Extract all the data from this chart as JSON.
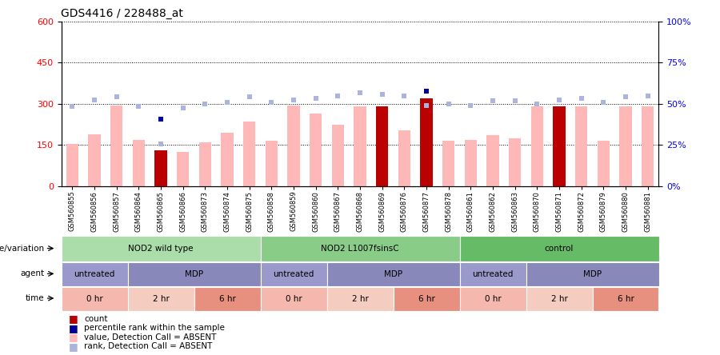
{
  "title": "GDS4416 / 228488_at",
  "samples": [
    "GSM560855",
    "GSM560856",
    "GSM560857",
    "GSM560864",
    "GSM560865",
    "GSM560866",
    "GSM560873",
    "GSM560874",
    "GSM560875",
    "GSM560858",
    "GSM560859",
    "GSM560860",
    "GSM560867",
    "GSM560868",
    "GSM560869",
    "GSM560876",
    "GSM560877",
    "GSM560878",
    "GSM560861",
    "GSM560862",
    "GSM560863",
    "GSM560870",
    "GSM560871",
    "GSM560872",
    "GSM560879",
    "GSM560880",
    "GSM560881"
  ],
  "values_absent": [
    155,
    190,
    295,
    170,
    110,
    125,
    160,
    195,
    235,
    165,
    295,
    265,
    225,
    290,
    285,
    205,
    170,
    165,
    170,
    185,
    175,
    290,
    275,
    290,
    165,
    290,
    290
  ],
  "rank_absent": [
    290,
    315,
    325,
    290,
    155,
    285,
    300,
    305,
    325,
    305,
    315,
    320,
    330,
    340,
    335,
    330,
    295,
    300,
    295,
    310,
    310,
    300,
    315,
    320,
    305,
    325,
    330
  ],
  "count_values": [
    0,
    0,
    0,
    0,
    130,
    0,
    0,
    0,
    0,
    0,
    0,
    0,
    0,
    0,
    290,
    0,
    320,
    0,
    0,
    0,
    0,
    0,
    290,
    0,
    0,
    0,
    0
  ],
  "rank_present": [
    null,
    null,
    null,
    null,
    245,
    null,
    null,
    null,
    null,
    null,
    null,
    null,
    null,
    null,
    null,
    null,
    345,
    null,
    null,
    null,
    null,
    null,
    null,
    null,
    null,
    null,
    null
  ],
  "genotype_groups": [
    {
      "label": "NOD2 wild type",
      "start": 0,
      "end": 8,
      "color": "#aaddaa"
    },
    {
      "label": "NOD2 L1007fsinsC",
      "start": 9,
      "end": 17,
      "color": "#88cc88"
    },
    {
      "label": "control",
      "start": 18,
      "end": 26,
      "color": "#66bb66"
    }
  ],
  "agent_groups": [
    {
      "label": "untreated",
      "start": 0,
      "end": 2,
      "color": "#9999cc"
    },
    {
      "label": "MDP",
      "start": 3,
      "end": 8,
      "color": "#8888bb"
    },
    {
      "label": "untreated",
      "start": 9,
      "end": 11,
      "color": "#9999cc"
    },
    {
      "label": "MDP",
      "start": 12,
      "end": 17,
      "color": "#8888bb"
    },
    {
      "label": "untreated",
      "start": 18,
      "end": 20,
      "color": "#9999cc"
    },
    {
      "label": "MDP",
      "start": 21,
      "end": 26,
      "color": "#8888bb"
    }
  ],
  "time_groups": [
    {
      "label": "0 hr",
      "start": 0,
      "end": 2,
      "color": "#f4b8ae"
    },
    {
      "label": "2 hr",
      "start": 3,
      "end": 5,
      "color": "#f4ccc0"
    },
    {
      "label": "6 hr",
      "start": 6,
      "end": 8,
      "color": "#e89080"
    },
    {
      "label": "0 hr",
      "start": 9,
      "end": 11,
      "color": "#f4b8ae"
    },
    {
      "label": "2 hr",
      "start": 12,
      "end": 14,
      "color": "#f4ccc0"
    },
    {
      "label": "6 hr",
      "start": 15,
      "end": 17,
      "color": "#e89080"
    },
    {
      "label": "0 hr",
      "start": 18,
      "end": 20,
      "color": "#f4b8ae"
    },
    {
      "label": "2 hr",
      "start": 21,
      "end": 23,
      "color": "#f4ccc0"
    },
    {
      "label": "6 hr",
      "start": 24,
      "end": 26,
      "color": "#e89080"
    }
  ],
  "ylim_left": [
    0,
    600
  ],
  "ylim_right": [
    0,
    100
  ],
  "yticks_left": [
    0,
    150,
    300,
    450,
    600
  ],
  "yticks_right": [
    0,
    25,
    50,
    75,
    100
  ],
  "bar_width": 0.55,
  "absent_bar_color": "#ffb8b8",
  "count_bar_color": "#bb0000",
  "rank_present_color": "#000099",
  "rank_absent_color": "#aab4dd"
}
